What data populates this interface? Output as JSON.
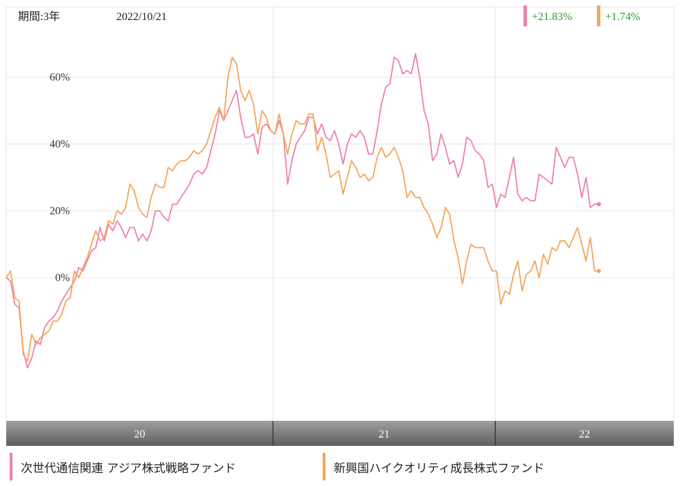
{
  "header": {
    "period_label": "期間:3年",
    "date": "2022/10/21",
    "returns": [
      {
        "text": "+21.83%",
        "color": "#f080a8"
      },
      {
        "text": "+1.74%",
        "color": "#f5a45a"
      }
    ]
  },
  "legend": [
    {
      "label": "次世代通信関連 アジア株式戦略ファンド",
      "color": "#f080a8"
    },
    {
      "label": "新興国ハイクオリティ成長株式ファンド",
      "color": "#f5a45a"
    }
  ],
  "chart_data": {
    "type": "line",
    "title": "",
    "xlabel": "",
    "ylabel": "",
    "x_ticks": [
      "20",
      "21",
      "22"
    ],
    "y_ticks": [
      "0%",
      "20%",
      "40%",
      "60%"
    ],
    "ylim": [
      -43,
      73
    ],
    "grid": true,
    "x_range": [
      "2019-10-21",
      "2022-10-21"
    ],
    "series": [
      {
        "name": "次世代通信関連 アジア株式戦略ファンド",
        "color": "#f080a8",
        "points": [
          [
            "2019-10-21",
            0
          ],
          [
            "2019-10-28",
            -1
          ],
          [
            "2019-11-04",
            -8
          ],
          [
            "2019-11-11",
            -9
          ],
          [
            "2019-11-18",
            -22
          ],
          [
            "2019-11-25",
            -27
          ],
          [
            "2019-12-02",
            -24
          ],
          [
            "2019-12-09",
            -19
          ],
          [
            "2019-12-16",
            -20
          ],
          [
            "2019-12-23",
            -15
          ],
          [
            "2019-12-30",
            -13
          ],
          [
            "2020-01-06",
            -12
          ],
          [
            "2020-01-13",
            -10
          ],
          [
            "2020-01-20",
            -7
          ],
          [
            "2020-01-27",
            -5
          ],
          [
            "2020-02-03",
            -3
          ],
          [
            "2020-02-10",
            -1
          ],
          [
            "2020-02-17",
            3
          ],
          [
            "2020-02-24",
            2
          ],
          [
            "2020-03-02",
            5
          ],
          [
            "2020-03-09",
            8
          ],
          [
            "2020-03-16",
            9
          ],
          [
            "2020-03-23",
            15
          ],
          [
            "2020-03-30",
            11
          ],
          [
            "2020-04-06",
            16
          ],
          [
            "2020-04-13",
            14
          ],
          [
            "2020-04-20",
            17
          ],
          [
            "2020-04-27",
            15
          ],
          [
            "2020-05-04",
            12
          ],
          [
            "2020-05-11",
            15
          ],
          [
            "2020-05-18",
            15
          ],
          [
            "2020-05-25",
            11
          ],
          [
            "2020-06-01",
            13
          ],
          [
            "2020-06-08",
            11
          ],
          [
            "2020-06-15",
            14
          ],
          [
            "2020-06-22",
            20
          ],
          [
            "2020-06-29",
            20
          ],
          [
            "2020-07-06",
            18
          ],
          [
            "2020-07-13",
            17
          ],
          [
            "2020-07-20",
            22
          ],
          [
            "2020-07-27",
            22
          ],
          [
            "2020-08-03",
            24
          ],
          [
            "2020-08-10",
            26
          ],
          [
            "2020-08-17",
            28
          ],
          [
            "2020-08-24",
            31
          ],
          [
            "2020-08-31",
            32
          ],
          [
            "2020-09-07",
            31
          ],
          [
            "2020-09-14",
            33
          ],
          [
            "2020-09-21",
            38
          ],
          [
            "2020-09-28",
            43
          ],
          [
            "2020-10-05",
            50
          ],
          [
            "2020-10-12",
            47
          ],
          [
            "2020-10-19",
            50
          ],
          [
            "2020-10-26",
            53
          ],
          [
            "2020-11-02",
            56
          ],
          [
            "2020-11-09",
            48
          ],
          [
            "2020-11-16",
            42
          ],
          [
            "2020-11-23",
            42
          ],
          [
            "2020-11-30",
            43
          ],
          [
            "2020-12-07",
            37
          ],
          [
            "2020-12-14",
            45
          ],
          [
            "2020-12-21",
            46
          ],
          [
            "2020-12-28",
            44
          ],
          [
            "2021-01-04",
            43
          ],
          [
            "2021-01-11",
            47
          ],
          [
            "2021-01-18",
            43
          ],
          [
            "2021-01-25",
            28
          ],
          [
            "2021-02-01",
            35
          ],
          [
            "2021-02-08",
            40
          ],
          [
            "2021-02-15",
            42
          ],
          [
            "2021-02-22",
            44
          ],
          [
            "2021-03-01",
            48
          ],
          [
            "2021-03-08",
            48
          ],
          [
            "2021-03-15",
            43
          ],
          [
            "2021-03-22",
            46
          ],
          [
            "2021-03-29",
            42
          ],
          [
            "2021-04-05",
            41
          ],
          [
            "2021-04-12",
            44
          ],
          [
            "2021-04-19",
            40
          ],
          [
            "2021-04-26",
            34
          ],
          [
            "2021-05-03",
            40
          ],
          [
            "2021-05-10",
            43
          ],
          [
            "2021-05-17",
            42
          ],
          [
            "2021-05-24",
            44
          ],
          [
            "2021-05-31",
            42
          ],
          [
            "2021-06-07",
            37
          ],
          [
            "2021-06-14",
            37
          ],
          [
            "2021-06-21",
            44
          ],
          [
            "2021-06-28",
            52
          ],
          [
            "2021-07-05",
            57
          ],
          [
            "2021-07-12",
            58
          ],
          [
            "2021-07-19",
            66
          ],
          [
            "2021-07-26",
            65
          ],
          [
            "2021-08-02",
            61
          ],
          [
            "2021-08-09",
            62
          ],
          [
            "2021-08-16",
            61
          ],
          [
            "2021-08-23",
            67
          ],
          [
            "2021-08-30",
            60
          ],
          [
            "2021-09-06",
            50
          ],
          [
            "2021-09-13",
            46
          ],
          [
            "2021-09-20",
            35
          ],
          [
            "2021-09-27",
            37
          ],
          [
            "2021-10-04",
            43
          ],
          [
            "2021-10-11",
            39
          ],
          [
            "2021-10-18",
            34
          ],
          [
            "2021-10-25",
            35
          ],
          [
            "2021-11-01",
            30
          ],
          [
            "2021-11-08",
            34
          ],
          [
            "2021-11-15",
            42
          ],
          [
            "2021-11-22",
            41
          ],
          [
            "2021-11-29",
            38
          ],
          [
            "2021-12-06",
            37
          ],
          [
            "2021-12-13",
            35
          ],
          [
            "2021-12-20",
            27
          ],
          [
            "2021-12-27",
            28
          ],
          [
            "2022-01-03",
            21
          ],
          [
            "2022-01-10",
            25
          ],
          [
            "2022-01-17",
            24
          ],
          [
            "2022-01-24",
            30
          ],
          [
            "2022-01-31",
            36
          ],
          [
            "2022-02-07",
            25
          ],
          [
            "2022-02-14",
            23
          ],
          [
            "2022-02-21",
            24
          ],
          [
            "2022-02-28",
            23
          ],
          [
            "2022-03-07",
            23
          ],
          [
            "2022-03-14",
            31
          ],
          [
            "2022-03-21",
            30
          ],
          [
            "2022-03-28",
            29
          ],
          [
            "2022-04-04",
            28
          ],
          [
            "2022-04-11",
            39
          ],
          [
            "2022-04-18",
            36
          ],
          [
            "2022-04-25",
            33
          ],
          [
            "2022-05-02",
            36
          ],
          [
            "2022-05-09",
            36
          ],
          [
            "2022-05-16",
            31
          ],
          [
            "2022-05-23",
            24
          ],
          [
            "2022-05-30",
            30
          ],
          [
            "2022-06-06",
            21
          ],
          [
            "2022-06-13",
            22
          ],
          [
            "2022-06-20",
            22
          ]
        ]
      },
      {
        "name": "新興国ハイクオリティ成長株式ファンド",
        "color": "#f5a45a",
        "points": [
          [
            "2019-10-21",
            0
          ],
          [
            "2019-10-28",
            2
          ],
          [
            "2019-11-04",
            -6
          ],
          [
            "2019-11-11",
            -7
          ],
          [
            "2019-11-18",
            -23
          ],
          [
            "2019-11-25",
            -25
          ],
          [
            "2019-12-02",
            -17
          ],
          [
            "2019-12-09",
            -20
          ],
          [
            "2019-12-16",
            -18
          ],
          [
            "2019-12-23",
            -17
          ],
          [
            "2019-12-30",
            -16
          ],
          [
            "2020-01-06",
            -13
          ],
          [
            "2020-01-13",
            -13
          ],
          [
            "2020-01-20",
            -11
          ],
          [
            "2020-01-27",
            -7
          ],
          [
            "2020-02-03",
            -6
          ],
          [
            "2020-02-10",
            2
          ],
          [
            "2020-02-17",
            0
          ],
          [
            "2020-02-24",
            3
          ],
          [
            "2020-03-02",
            6
          ],
          [
            "2020-03-09",
            10
          ],
          [
            "2020-03-16",
            14
          ],
          [
            "2020-03-23",
            11
          ],
          [
            "2020-03-30",
            12
          ],
          [
            "2020-04-06",
            17
          ],
          [
            "2020-04-13",
            16
          ],
          [
            "2020-04-20",
            20
          ],
          [
            "2020-04-27",
            19
          ],
          [
            "2020-05-04",
            21
          ],
          [
            "2020-05-11",
            28
          ],
          [
            "2020-05-18",
            26
          ],
          [
            "2020-05-25",
            21
          ],
          [
            "2020-06-01",
            19
          ],
          [
            "2020-06-08",
            18
          ],
          [
            "2020-06-15",
            24
          ],
          [
            "2020-06-22",
            28
          ],
          [
            "2020-06-29",
            27
          ],
          [
            "2020-07-06",
            27
          ],
          [
            "2020-07-13",
            33
          ],
          [
            "2020-07-20",
            32
          ],
          [
            "2020-07-27",
            34
          ],
          [
            "2020-08-03",
            35
          ],
          [
            "2020-08-10",
            35
          ],
          [
            "2020-08-17",
            36
          ],
          [
            "2020-08-24",
            38
          ],
          [
            "2020-08-31",
            37
          ],
          [
            "2020-09-07",
            38
          ],
          [
            "2020-09-14",
            40
          ],
          [
            "2020-09-21",
            44
          ],
          [
            "2020-09-28",
            48
          ],
          [
            "2020-10-05",
            51
          ],
          [
            "2020-10-12",
            47
          ],
          [
            "2020-10-19",
            60
          ],
          [
            "2020-10-26",
            66
          ],
          [
            "2020-11-02",
            64
          ],
          [
            "2020-11-09",
            56
          ],
          [
            "2020-11-16",
            53
          ],
          [
            "2020-11-23",
            56
          ],
          [
            "2020-11-30",
            52
          ],
          [
            "2020-12-07",
            43
          ],
          [
            "2020-12-14",
            50
          ],
          [
            "2020-12-21",
            48
          ],
          [
            "2020-12-28",
            44
          ],
          [
            "2021-01-04",
            43
          ],
          [
            "2021-01-11",
            49
          ],
          [
            "2021-01-18",
            43
          ],
          [
            "2021-01-25",
            37
          ],
          [
            "2021-02-01",
            43
          ],
          [
            "2021-02-08",
            47
          ],
          [
            "2021-02-15",
            46
          ],
          [
            "2021-02-22",
            46
          ],
          [
            "2021-03-01",
            49
          ],
          [
            "2021-03-08",
            49
          ],
          [
            "2021-03-15",
            38
          ],
          [
            "2021-03-22",
            42
          ],
          [
            "2021-03-29",
            37
          ],
          [
            "2021-04-05",
            30
          ],
          [
            "2021-04-12",
            31
          ],
          [
            "2021-04-19",
            32
          ],
          [
            "2021-04-26",
            25
          ],
          [
            "2021-05-03",
            30
          ],
          [
            "2021-05-10",
            35
          ],
          [
            "2021-05-17",
            33
          ],
          [
            "2021-05-24",
            30
          ],
          [
            "2021-05-31",
            31
          ],
          [
            "2021-06-07",
            29
          ],
          [
            "2021-06-14",
            30
          ],
          [
            "2021-06-21",
            36
          ],
          [
            "2021-06-28",
            39
          ],
          [
            "2021-07-05",
            36
          ],
          [
            "2021-07-12",
            37
          ],
          [
            "2021-07-19",
            39
          ],
          [
            "2021-07-26",
            36
          ],
          [
            "2021-08-02",
            32
          ],
          [
            "2021-08-09",
            24
          ],
          [
            "2021-08-16",
            26
          ],
          [
            "2021-08-23",
            24
          ],
          [
            "2021-08-30",
            24
          ],
          [
            "2021-09-06",
            21
          ],
          [
            "2021-09-13",
            19
          ],
          [
            "2021-09-20",
            16
          ],
          [
            "2021-09-27",
            12
          ],
          [
            "2021-10-04",
            15
          ],
          [
            "2021-10-11",
            21
          ],
          [
            "2021-10-18",
            19
          ],
          [
            "2021-10-25",
            11
          ],
          [
            "2021-11-01",
            6
          ],
          [
            "2021-11-08",
            -2
          ],
          [
            "2021-11-15",
            5
          ],
          [
            "2021-11-22",
            10
          ],
          [
            "2021-11-29",
            9
          ],
          [
            "2021-12-06",
            9
          ],
          [
            "2021-12-13",
            9
          ],
          [
            "2021-12-20",
            5
          ],
          [
            "2021-12-27",
            2
          ],
          [
            "2022-01-03",
            2
          ],
          [
            "2022-01-10",
            -8
          ],
          [
            "2022-01-17",
            -4
          ],
          [
            "2022-01-24",
            -5
          ],
          [
            "2022-01-31",
            1
          ],
          [
            "2022-02-07",
            5
          ],
          [
            "2022-02-14",
            -4
          ],
          [
            "2022-02-21",
            1
          ],
          [
            "2022-02-28",
            2
          ],
          [
            "2022-03-07",
            5
          ],
          [
            "2022-03-14",
            0
          ],
          [
            "2022-03-21",
            7
          ],
          [
            "2022-03-28",
            4
          ],
          [
            "2022-04-04",
            9
          ],
          [
            "2022-04-11",
            8
          ],
          [
            "2022-04-18",
            11
          ],
          [
            "2022-04-25",
            11
          ],
          [
            "2022-05-02",
            9
          ],
          [
            "2022-05-09",
            12
          ],
          [
            "2022-05-16",
            15
          ],
          [
            "2022-05-23",
            10
          ],
          [
            "2022-05-30",
            5
          ],
          [
            "2022-06-06",
            12
          ],
          [
            "2022-06-13",
            2
          ],
          [
            "2022-06-20",
            2
          ]
        ]
      }
    ]
  }
}
